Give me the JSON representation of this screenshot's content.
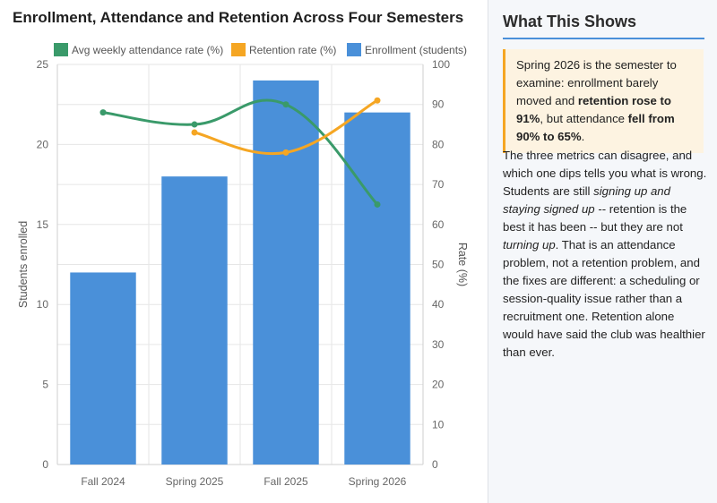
{
  "chart_data": {
    "type": "bar",
    "title": "Enrollment, Attendance and Retention Across Four Semesters",
    "categories": [
      "Fall 2024",
      "Spring 2025",
      "Fall 2025",
      "Spring 2026"
    ],
    "series": [
      {
        "name": "Enrollment (students)",
        "type": "bar",
        "axis": "left",
        "color": "#4a90d9",
        "values": [
          12,
          18,
          24,
          22
        ]
      },
      {
        "name": "Avg weekly attendance rate (%)",
        "type": "line",
        "axis": "right",
        "color": "#3a9a6a",
        "values": [
          88,
          85,
          90,
          65
        ]
      },
      {
        "name": "Retention rate (%)",
        "type": "line",
        "axis": "right",
        "color": "#f5a623",
        "values": [
          null,
          83,
          78,
          91
        ]
      }
    ],
    "legend_order": [
      "Avg weekly attendance rate (%)",
      "Retention rate (%)",
      "Enrollment (students)"
    ],
    "legend_position": "top",
    "ylabel": "Students enrolled",
    "y2label": "Rate (%)",
    "ylim": [
      0,
      25
    ],
    "y2lim": [
      0,
      100
    ],
    "yticks": [
      0,
      5,
      10,
      15,
      20,
      25
    ],
    "y2ticks": [
      0,
      10,
      20,
      30,
      40,
      50,
      60,
      70,
      80,
      90,
      100
    ],
    "grid": true
  },
  "sidebar": {
    "heading": "What This Shows",
    "callout": [
      {
        "text": "Spring 2026 is the semester to examine: enrollment barely moved and "
      },
      {
        "text": "retention rose to 91%",
        "bold": true
      },
      {
        "text": ", but attendance "
      },
      {
        "text": "fell from 90% to 65%",
        "bold": true
      },
      {
        "text": "."
      }
    ],
    "body": [
      {
        "text": "The three metrics can disagree, and which one dips tells you what is wrong. Students are still "
      },
      {
        "text": "signing up and staying signed up",
        "italic": true
      },
      {
        "text": " -- retention is the best it has been -- but they are not "
      },
      {
        "text": "turning up",
        "italic": true
      },
      {
        "text": ". That is an attendance problem, not a retention problem, and the fixes are different: a scheduling or session-quality issue rather than a recruitment one. Retention alone would have said the club was healthier than ever."
      }
    ]
  }
}
